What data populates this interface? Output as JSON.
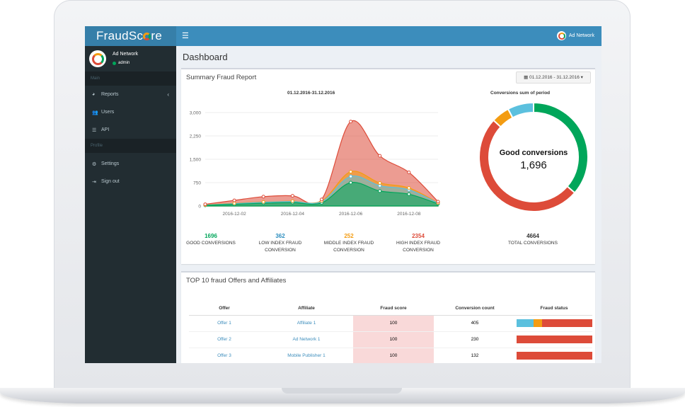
{
  "app": {
    "logo_text": "FraudScore",
    "menu_icon": "hamburger-icon",
    "top_user_name": "Ad Network"
  },
  "sidebar": {
    "user_name": "Ad Network",
    "user_role": "admin",
    "section_main": "Main",
    "section_profile": "Profile",
    "items": [
      {
        "label": "Reports",
        "icon": "pie-chart-icon"
      },
      {
        "label": "Users",
        "icon": "users-icon"
      },
      {
        "label": "API",
        "icon": "list-icon"
      },
      {
        "label": "Settings",
        "icon": "gear-icon"
      },
      {
        "label": "Sign out",
        "icon": "sign-out-icon"
      }
    ]
  },
  "page": {
    "title": "Dashboard"
  },
  "summary": {
    "title": "Summary Fraud Report",
    "date_range": "01.12.2016 - 31.12.2016",
    "stats": [
      {
        "value": "1696",
        "label1": "GOOD CONVERSIONS",
        "label2": "",
        "color": "#00a65a"
      },
      {
        "value": "362",
        "label1": "LOW INDEX FRAUD",
        "label2": "CONVERSION",
        "color": "#2c8ebf"
      },
      {
        "value": "252",
        "label1": "MIDDLE INDEX FRAUD",
        "label2": "CONVERSION",
        "color": "#f39c12"
      },
      {
        "value": "2354",
        "label1": "HIGH INDEX FRAUD",
        "label2": "CONVERSION",
        "color": "#dd4b39"
      },
      {
        "value": "4664",
        "label1": "TOTAL CONVERSIONS",
        "label2": "",
        "color": "#333333"
      }
    ]
  },
  "chart_data": [
    {
      "type": "area",
      "title": "01.12.2016-31.12.2016",
      "x": [
        "2016-12-01",
        "2016-12-02",
        "2016-12-03",
        "2016-12-04",
        "2016-12-05",
        "2016-12-06",
        "2016-12-07",
        "2016-12-08",
        "2016-12-09"
      ],
      "x_tick_labels": [
        "2016-12-02",
        "2016-12-04",
        "2016-12-06",
        "2016-12-08"
      ],
      "y_tick_labels": [
        "3,000",
        "2,250",
        "1,500",
        "750",
        "0"
      ],
      "ylim": [
        0,
        3000
      ],
      "stacked": true,
      "series": [
        {
          "color": "#00a65a",
          "values": [
            20,
            55,
            90,
            110,
            100,
            750,
            480,
            380,
            70
          ]
        },
        {
          "color": "#5bc0de",
          "values": [
            10,
            20,
            30,
            35,
            40,
            200,
            170,
            140,
            20
          ]
        },
        {
          "color": "#f39c12",
          "values": [
            5,
            10,
            10,
            12,
            20,
            150,
            90,
            60,
            10
          ]
        },
        {
          "color": "#dd4b39",
          "values": [
            20,
            95,
            170,
            170,
            50,
            1610,
            870,
            500,
            40
          ]
        }
      ]
    },
    {
      "type": "pie",
      "title": "Conversions sum of period",
      "center_label": "Good conversions",
      "center_value": "1,696",
      "slices": [
        {
          "value": 1696,
          "color": "#00a65a"
        },
        {
          "value": 2354,
          "color": "#dd4b39"
        },
        {
          "value": 252,
          "color": "#f39c12"
        },
        {
          "value": 362,
          "color": "#5bc0de"
        }
      ]
    }
  ],
  "top10": {
    "title": "TOP 10 fraud Offers and Affiliates",
    "headers": [
      "Offer",
      "Affiliate",
      "Fraud score",
      "Conversion count",
      "Fraud status"
    ],
    "rows": [
      {
        "offer": "Offer 1",
        "affiliate": "Affiliate 1",
        "score": "100",
        "count": "405",
        "status": [
          0.23,
          0.11,
          0.66
        ]
      },
      {
        "offer": "Offer 2",
        "affiliate": "Ad Network 1",
        "score": "100",
        "count": "230",
        "status": [
          0,
          0,
          1
        ]
      },
      {
        "offer": "Offer 3",
        "affiliate": "Mobile Publisher 1",
        "score": "100",
        "count": "132",
        "status": [
          0,
          0,
          1
        ]
      }
    ],
    "status_colors": [
      "#5bc0de",
      "#f39c12",
      "#dd4b39"
    ]
  }
}
